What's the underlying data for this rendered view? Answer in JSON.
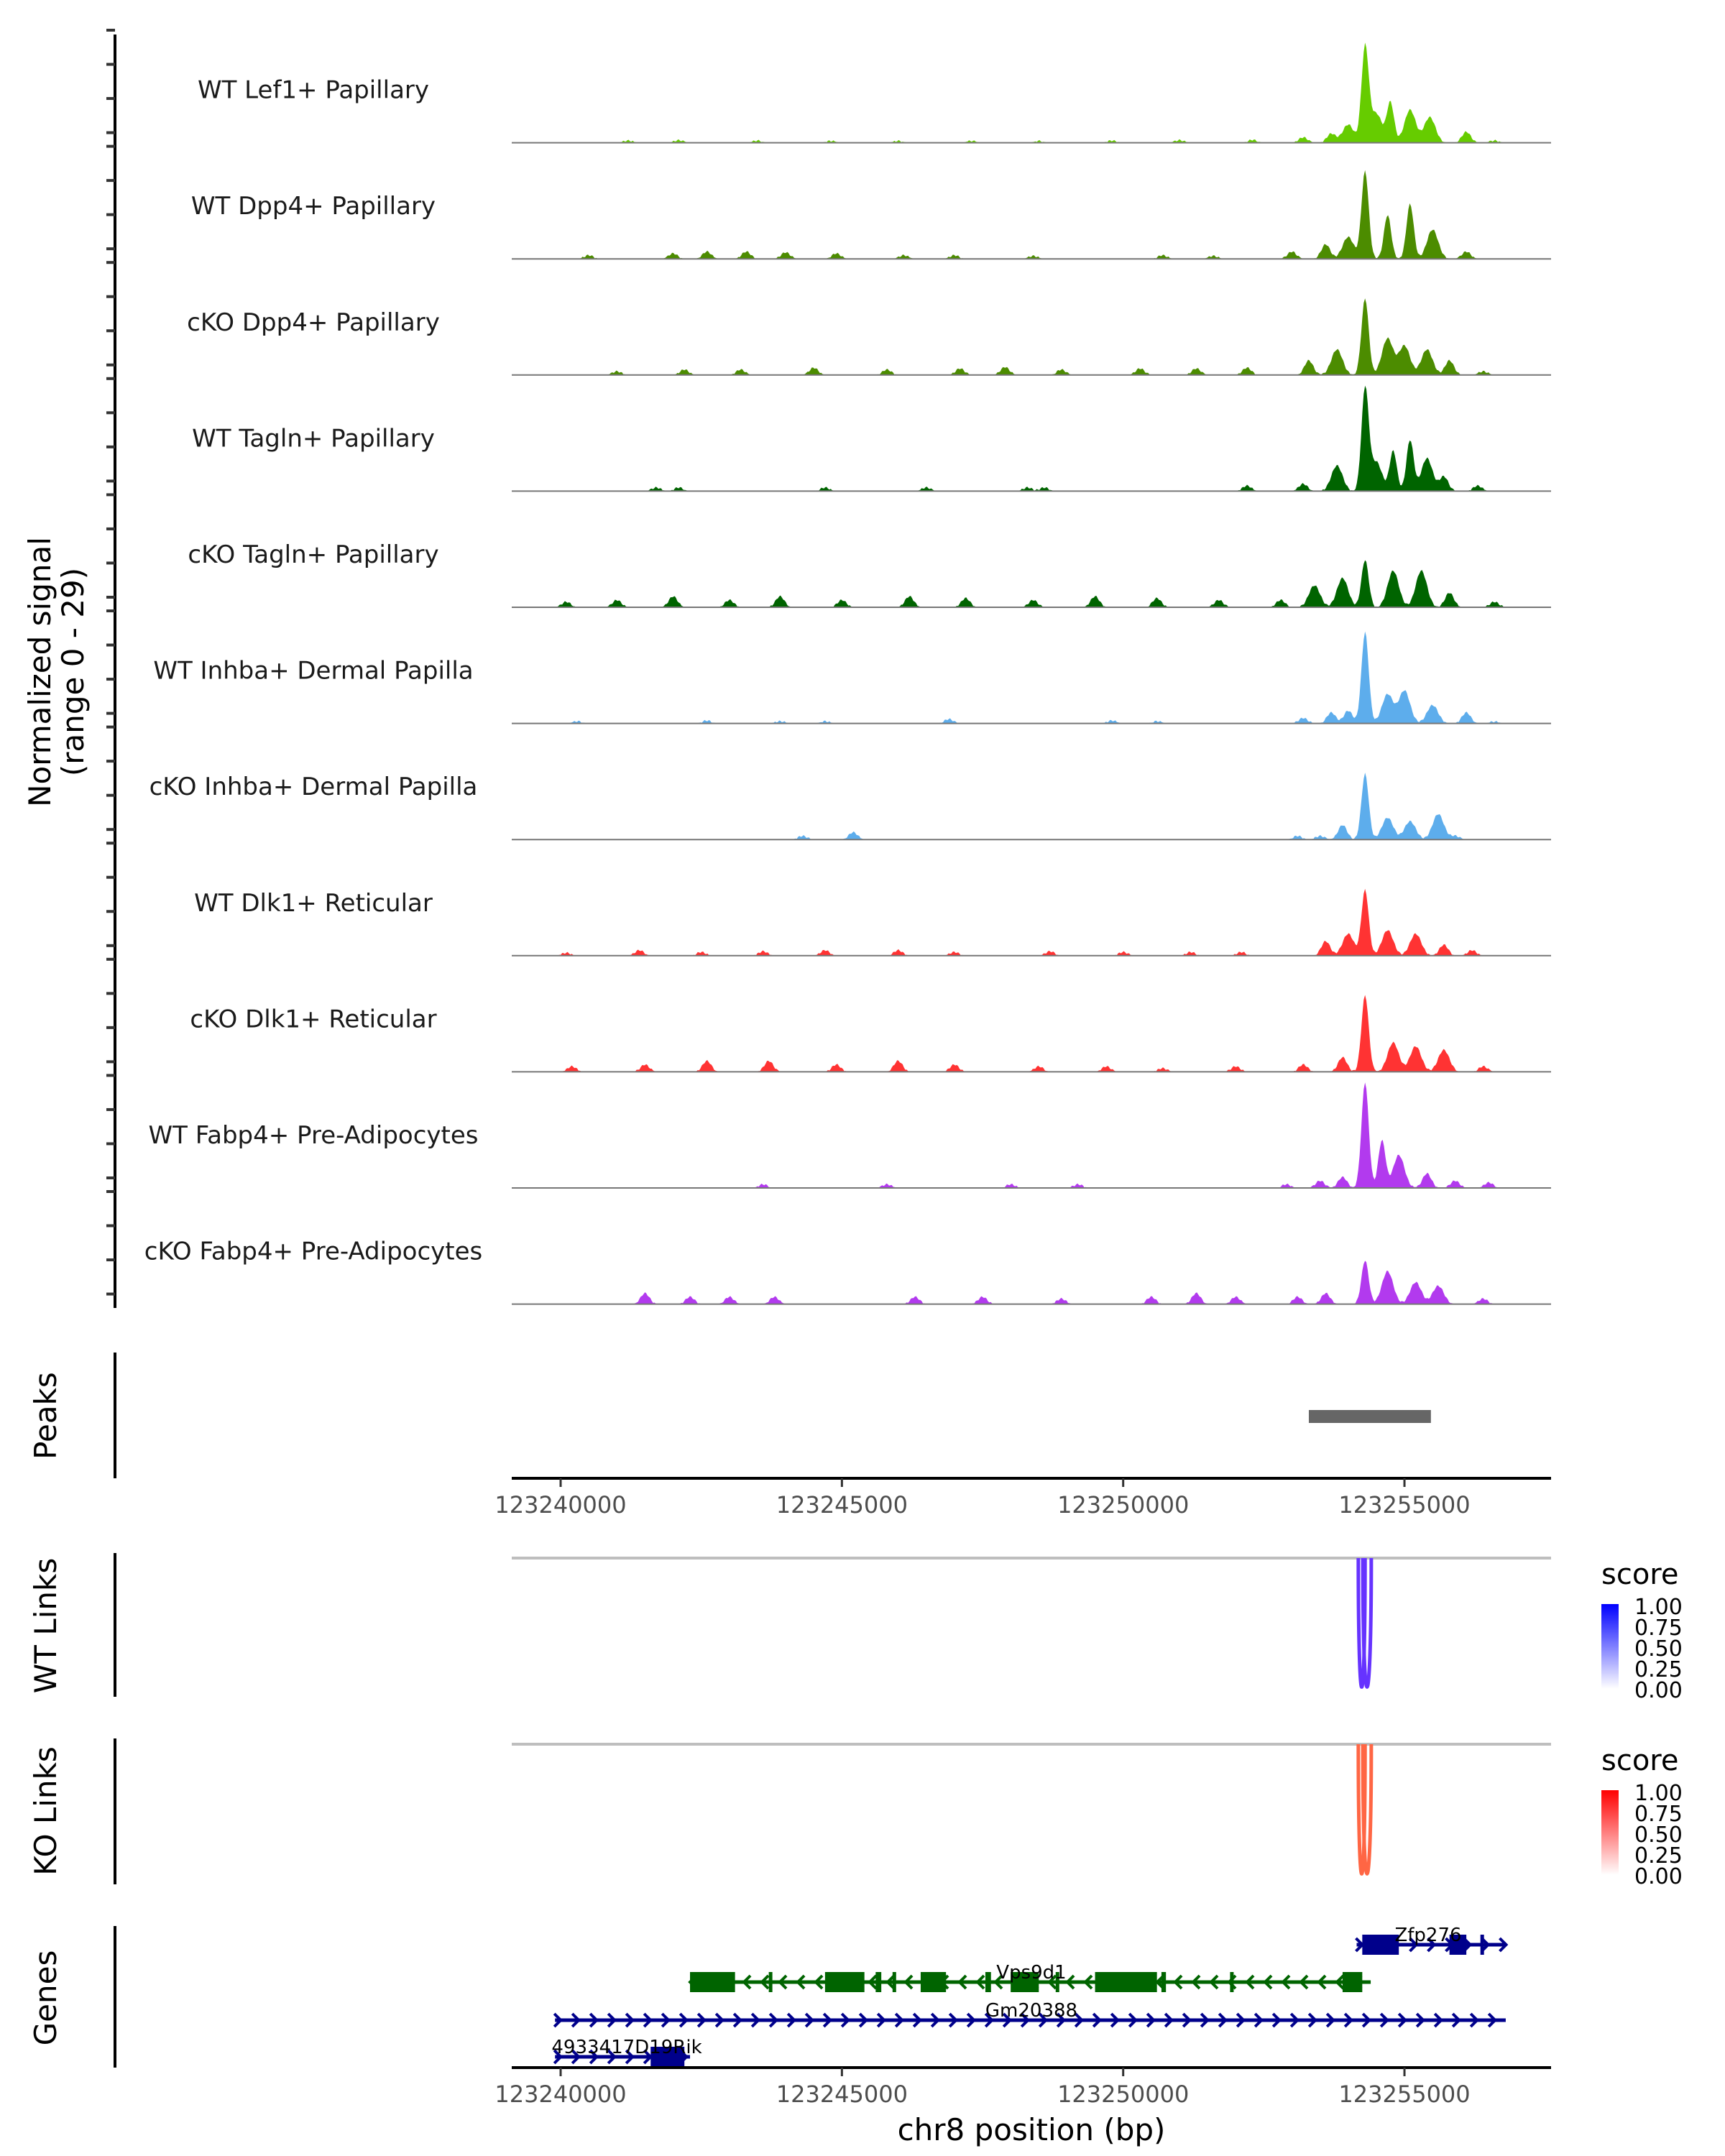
{
  "chart_data": {
    "type": "area",
    "title": "",
    "region": {
      "chrom": "chr8",
      "start": 123239131,
      "end": 123257606
    },
    "ylabel": "Normalized signal\n(range 0 - 29)",
    "ylabel_lines": [
      "Normalized signal",
      "(range 0 - 29)"
    ],
    "ylim": [
      0,
      29
    ],
    "xlabel": "chr8 position (bp)",
    "x_ticks": [
      123240000,
      123245000,
      123250000,
      123255000
    ],
    "x_tick_labels": [
      "123240000",
      "123245000",
      "123250000",
      "123255000"
    ],
    "tracks": [
      {
        "name": "WT Lef1+ Papillary",
        "color": "#66CC00",
        "peaks": [
          [
            123241200,
            0.6
          ],
          [
            123242100,
            0.7
          ],
          [
            123243500,
            0.6
          ],
          [
            123244800,
            0.5
          ],
          [
            123246000,
            0.5
          ],
          [
            123247300,
            0.5
          ],
          [
            123248500,
            0.5
          ],
          [
            123249800,
            0.6
          ],
          [
            123251000,
            0.7
          ],
          [
            123252300,
            0.8
          ],
          [
            123253200,
            1.5
          ],
          [
            123253700,
            2.5
          ],
          [
            123254000,
            5
          ],
          [
            123254300,
            26
          ],
          [
            123254500,
            8
          ],
          [
            123254750,
            11
          ],
          [
            123255100,
            9
          ],
          [
            123255450,
            7
          ],
          [
            123256100,
            3
          ],
          [
            123256600,
            0.6
          ]
        ]
      },
      {
        "name": "WT Dpp4+ Papillary",
        "color": "#4C8C00",
        "peaks": [
          [
            123240500,
            1
          ],
          [
            123242000,
            1.5
          ],
          [
            123242600,
            2
          ],
          [
            123243300,
            2
          ],
          [
            123244000,
            1.8
          ],
          [
            123244900,
            1.5
          ],
          [
            123246100,
            1
          ],
          [
            123247000,
            1
          ],
          [
            123248400,
            0.8
          ],
          [
            123250700,
            1
          ],
          [
            123251600,
            0.8
          ],
          [
            123253000,
            2
          ],
          [
            123253600,
            4
          ],
          [
            123254000,
            6
          ],
          [
            123254300,
            24
          ],
          [
            123254700,
            12
          ],
          [
            123255100,
            15
          ],
          [
            123255500,
            8
          ],
          [
            123256100,
            2
          ]
        ]
      },
      {
        "name": "cKO Dpp4+ Papillary",
        "color": "#4C8C00",
        "peaks": [
          [
            123241000,
            1
          ],
          [
            123242200,
            1.5
          ],
          [
            123243200,
            1.5
          ],
          [
            123244500,
            2
          ],
          [
            123245800,
            1.5
          ],
          [
            123247100,
            1.8
          ],
          [
            123247900,
            2.2
          ],
          [
            123248900,
            1.5
          ],
          [
            123250300,
            1.8
          ],
          [
            123251300,
            1.8
          ],
          [
            123252200,
            2
          ],
          [
            123253300,
            4
          ],
          [
            123253800,
            7
          ],
          [
            123254300,
            21
          ],
          [
            123254700,
            10
          ],
          [
            123255000,
            8
          ],
          [
            123255400,
            7
          ],
          [
            123255800,
            4
          ],
          [
            123256400,
            1
          ]
        ]
      },
      {
        "name": "WT Tagln+ Papillary",
        "color": "#006400",
        "peaks": [
          [
            123241700,
            1
          ],
          [
            123242100,
            1
          ],
          [
            123244700,
            1
          ],
          [
            123246500,
            1
          ],
          [
            123248300,
            1
          ],
          [
            123248600,
            1
          ],
          [
            123252200,
            1.5
          ],
          [
            123253200,
            2
          ],
          [
            123253800,
            7
          ],
          [
            123254300,
            28
          ],
          [
            123254500,
            8
          ],
          [
            123254800,
            11
          ],
          [
            123255100,
            14
          ],
          [
            123255400,
            9
          ],
          [
            123255700,
            4
          ],
          [
            123256300,
            1.5
          ]
        ]
      },
      {
        "name": "cKO Tagln+ Papillary",
        "color": "#006400",
        "peaks": [
          [
            123240100,
            1.5
          ],
          [
            123241000,
            2
          ],
          [
            123242000,
            3
          ],
          [
            123243000,
            2
          ],
          [
            123243900,
            3
          ],
          [
            123245000,
            2
          ],
          [
            123246200,
            3
          ],
          [
            123247200,
            2.5
          ],
          [
            123248400,
            2
          ],
          [
            123249500,
            3
          ],
          [
            123250600,
            2.5
          ],
          [
            123251700,
            2
          ],
          [
            123252800,
            2
          ],
          [
            123253400,
            6
          ],
          [
            123253900,
            8
          ],
          [
            123254300,
            13
          ],
          [
            123254800,
            10
          ],
          [
            123255300,
            10
          ],
          [
            123255800,
            4
          ],
          [
            123256600,
            1.5
          ]
        ]
      },
      {
        "name": "WT Inhba+ Dermal Papilla",
        "color": "#5DADEC",
        "peaks": [
          [
            123240300,
            0.6
          ],
          [
            123242600,
            0.8
          ],
          [
            123243900,
            0.6
          ],
          [
            123244700,
            0.6
          ],
          [
            123246900,
            1.2
          ],
          [
            123249800,
            0.8
          ],
          [
            123250600,
            0.6
          ],
          [
            123253200,
            1.5
          ],
          [
            123253700,
            3
          ],
          [
            123254000,
            3.5
          ],
          [
            123254300,
            25
          ],
          [
            123254700,
            8
          ],
          [
            123255000,
            9
          ],
          [
            123255500,
            5
          ],
          [
            123256100,
            3
          ],
          [
            123256600,
            0.5
          ]
        ]
      },
      {
        "name": "cKO Inhba+ Dermal Papilla",
        "color": "#5DADEC",
        "peaks": [
          [
            123244300,
            1
          ],
          [
            123245200,
            2
          ],
          [
            123253100,
            1
          ],
          [
            123253500,
            1
          ],
          [
            123253900,
            4
          ],
          [
            123254300,
            18
          ],
          [
            123254700,
            6
          ],
          [
            123255100,
            5
          ],
          [
            123255600,
            7
          ],
          [
            123255900,
            1
          ]
        ]
      },
      {
        "name": "WT Dlk1+ Reticular",
        "color": "#FF3333",
        "peaks": [
          [
            123240100,
            0.8
          ],
          [
            123241400,
            1.5
          ],
          [
            123242500,
            1
          ],
          [
            123243600,
            1.2
          ],
          [
            123244700,
            1.5
          ],
          [
            123246000,
            1.5
          ],
          [
            123247000,
            1
          ],
          [
            123248700,
            1.2
          ],
          [
            123250000,
            1
          ],
          [
            123251200,
            1
          ],
          [
            123252100,
            1
          ],
          [
            123253600,
            4
          ],
          [
            123254000,
            6
          ],
          [
            123254300,
            18
          ],
          [
            123254700,
            7
          ],
          [
            123255200,
            6
          ],
          [
            123255700,
            3
          ],
          [
            123256200,
            1.5
          ]
        ]
      },
      {
        "name": "cKO Dlk1+ Reticular",
        "color": "#FF3333",
        "peaks": [
          [
            123240200,
            1.5
          ],
          [
            123241500,
            2
          ],
          [
            123242600,
            3
          ],
          [
            123243700,
            3
          ],
          [
            123244900,
            2
          ],
          [
            123246000,
            3
          ],
          [
            123247000,
            2
          ],
          [
            123248500,
            1.5
          ],
          [
            123249700,
            1.5
          ],
          [
            123250700,
            1
          ],
          [
            123252000,
            1.5
          ],
          [
            123253200,
            2
          ],
          [
            123253900,
            4
          ],
          [
            123254300,
            21
          ],
          [
            123254800,
            8
          ],
          [
            123255200,
            7
          ],
          [
            123255700,
            6
          ],
          [
            123256400,
            1.5
          ]
        ]
      },
      {
        "name": "WT Fabp4+ Pre-Adipocytes",
        "color": "#B23AEE",
        "peaks": [
          [
            123243600,
            1
          ],
          [
            123245800,
            1
          ],
          [
            123248000,
            1
          ],
          [
            123249200,
            1
          ],
          [
            123252900,
            1
          ],
          [
            123253500,
            2
          ],
          [
            123253900,
            3
          ],
          [
            123254300,
            29
          ],
          [
            123254600,
            13
          ],
          [
            123254900,
            9
          ],
          [
            123255400,
            4
          ],
          [
            123255900,
            2
          ],
          [
            123256500,
            1.5
          ]
        ]
      },
      {
        "name": "cKO Fabp4+ Pre-Adipocytes",
        "color": "#B23AEE",
        "peaks": [
          [
            123241500,
            3
          ],
          [
            123242300,
            2
          ],
          [
            123243000,
            2
          ],
          [
            123243800,
            2
          ],
          [
            123246300,
            2
          ],
          [
            123247500,
            2
          ],
          [
            123248900,
            1.5
          ],
          [
            123250500,
            2
          ],
          [
            123251300,
            3
          ],
          [
            123252000,
            2
          ],
          [
            123253100,
            2
          ],
          [
            123253600,
            3
          ],
          [
            123254300,
            12
          ],
          [
            123254700,
            9
          ],
          [
            123255200,
            6
          ],
          [
            123255600,
            5
          ],
          [
            123256400,
            1.5
          ]
        ]
      }
    ],
    "peaks_track": {
      "label": "Peaks",
      "color": "#666666",
      "regions": [
        {
          "start": 123253300,
          "end": 123255470
        }
      ]
    },
    "links_tracks": [
      {
        "label": "WT Links",
        "color": "#6633FF",
        "links": [
          {
            "start": 123254180,
            "end": 123254300,
            "score": 0.8
          },
          {
            "start": 123254260,
            "end": 123254410,
            "score": 0.8
          }
        ]
      },
      {
        "label": "KO Links",
        "color": "#FF6644",
        "links": [
          {
            "start": 123254180,
            "end": 123254300,
            "score": 0.7
          },
          {
            "start": 123254260,
            "end": 123254410,
            "score": 0.7
          }
        ]
      }
    ],
    "legends": [
      {
        "title": "score",
        "low_color": "#FFFFFF",
        "high_color": "#0000FF",
        "ticks": [
          "1.00",
          "0.75",
          "0.50",
          "0.25",
          "0.00"
        ]
      },
      {
        "title": "score",
        "low_color": "#FFFFFF",
        "high_color": "#FF0000",
        "ticks": [
          "1.00",
          "0.75",
          "0.50",
          "0.25",
          "0.00"
        ]
      }
    ],
    "genes_track": {
      "label": "Genes",
      "genes": [
        {
          "name": "Zfp276",
          "strand": "+",
          "color": "#00008B",
          "row": 0,
          "start": 123254150,
          "end": 123256800,
          "exons": [
            [
              123254250,
              123254900
            ],
            [
              123255800,
              123256100
            ],
            [
              123256350,
              123256380
            ]
          ]
        },
        {
          "name": "Vps9d1",
          "strand": "-",
          "color": "#006400",
          "row": 1,
          "start": 123242300,
          "end": 123254400,
          "exons": [
            [
              123242300,
              123243100
            ],
            [
              123243700,
              123243730
            ],
            [
              123244700,
              123245400
            ],
            [
              123245600,
              123245700
            ],
            [
              123245900,
              123245950
            ],
            [
              123246400,
              123246850
            ],
            [
              123247550,
              123247650
            ],
            [
              123248000,
              123248500
            ],
            [
              123248800,
              123248860
            ],
            [
              123249500,
              123250600
            ],
            [
              123250680,
              123250760
            ],
            [
              123251900,
              123251940
            ],
            [
              123253900,
              123254250
            ]
          ]
        },
        {
          "name": "Gm20388",
          "strand": "+",
          "color": "#00008B",
          "row": 2,
          "start": 123239900,
          "end": 123256800,
          "exons": []
        },
        {
          "name": "4933417D19Rik",
          "strand": "+",
          "color": "#00008B",
          "row": 3,
          "start": 123239900,
          "end": 123242300,
          "exons": [
            [
              123241600,
              123242200
            ]
          ]
        }
      ]
    }
  }
}
